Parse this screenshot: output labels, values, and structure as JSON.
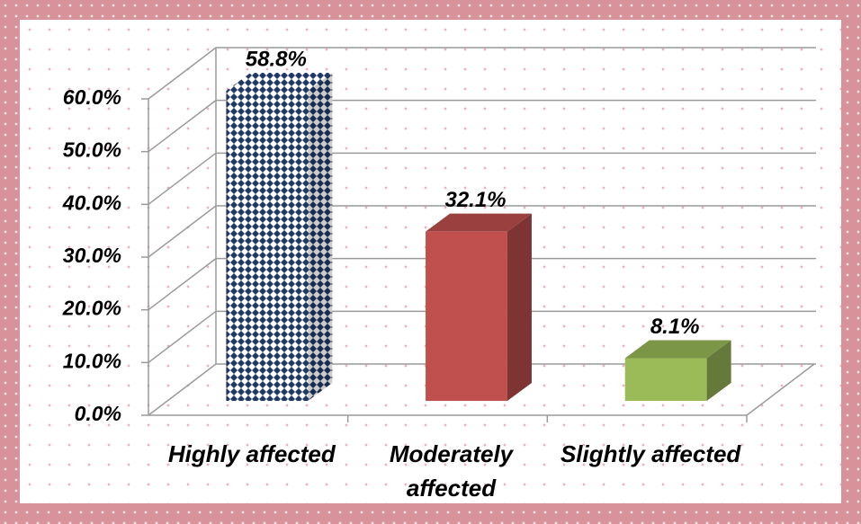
{
  "chart_data": {
    "type": "bar3d",
    "categories": [
      "Highly affected",
      "Moderately affected",
      "Slightly affected"
    ],
    "values": [
      58.8,
      32.1,
      8.1
    ],
    "value_labels": [
      "58.8%",
      "32.1%",
      "8.1%"
    ],
    "colors": [
      "#1f3864",
      "#c0504d",
      "#9bbb59"
    ],
    "ylim": [
      0,
      60
    ],
    "yticks": [
      {
        "value": 0,
        "label": "0.0%"
      },
      {
        "value": 10,
        "label": "10.0%"
      },
      {
        "value": 20,
        "label": "20.0%"
      },
      {
        "value": 30,
        "label": "30.0%"
      },
      {
        "value": 40,
        "label": "40.0%"
      },
      {
        "value": 50,
        "label": "50.0%"
      },
      {
        "value": 60,
        "label": "60.0%"
      }
    ],
    "grid": true
  }
}
